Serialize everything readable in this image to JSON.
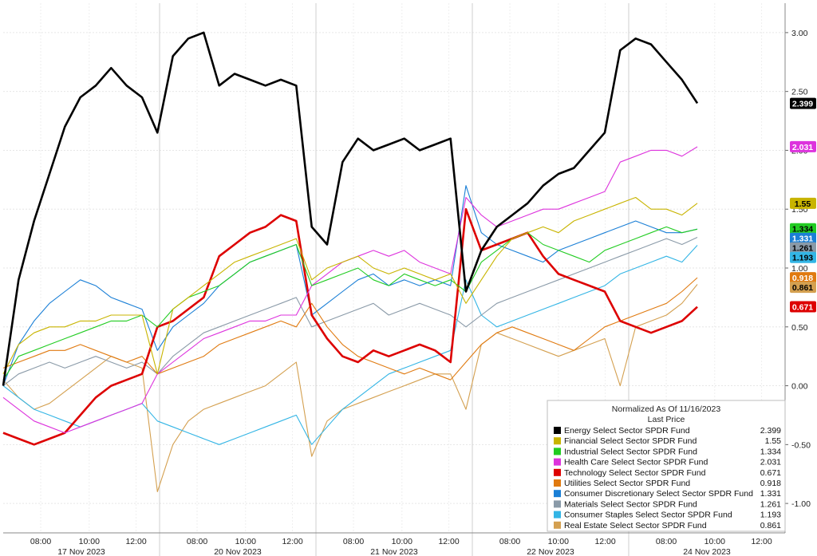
{
  "chart_data": {
    "type": "line",
    "title": "Normalized As Of 11/16/2023",
    "subtitle": "Last Price",
    "ylim": [
      -1.25,
      3.25
    ],
    "y_ticks": [
      -1.0,
      -0.5,
      0.0,
      0.5,
      1.0,
      1.5,
      2.0,
      2.5,
      3.0
    ],
    "y_tick_labels": [
      "-1.00",
      "-0.50",
      "0.00",
      "0.50",
      "1.00",
      "1.50",
      "2.00",
      "2.50",
      "3.00"
    ],
    "x_ticks": [
      "08:00",
      "10:00",
      "12:00",
      "08:00",
      "10:00",
      "12:00",
      "08:00",
      "10:00",
      "12:00",
      "08:00",
      "10:00",
      "12:00",
      "08:00",
      "10:00",
      "12:00"
    ],
    "days": [
      "17 Nov 2023",
      "20 Nov 2023",
      "21 Nov 2023",
      "22 Nov 2023",
      "24 Nov 2023"
    ],
    "grid": true,
    "legend_position": "bottom-right",
    "series": [
      {
        "name": "Energy Select Sector SPDR Fund",
        "last": "2.399",
        "color": "#000000",
        "values": [
          0.0,
          0.9,
          1.4,
          1.8,
          2.2,
          2.45,
          2.55,
          2.7,
          2.55,
          2.45,
          2.15,
          2.8,
          2.95,
          3.0,
          2.55,
          2.65,
          2.6,
          2.55,
          2.6,
          2.55,
          1.35,
          1.2,
          1.9,
          2.1,
          2.0,
          2.05,
          2.1,
          2.0,
          2.05,
          2.1,
          0.8,
          1.15,
          1.35,
          1.45,
          1.55,
          1.7,
          1.8,
          1.85,
          2.0,
          2.15,
          2.85,
          2.95,
          2.9,
          2.75,
          2.6,
          2.4
        ]
      },
      {
        "name": "Financial Select Sector SPDR Fund",
        "last": "1.55",
        "color": "#c8b400",
        "values": [
          0.1,
          0.35,
          0.45,
          0.5,
          0.5,
          0.55,
          0.55,
          0.6,
          0.6,
          0.6,
          0.1,
          0.65,
          0.75,
          0.85,
          0.95,
          1.05,
          1.1,
          1.15,
          1.2,
          1.25,
          0.9,
          1.0,
          1.05,
          1.1,
          1.0,
          0.95,
          1.0,
          0.95,
          0.9,
          0.95,
          0.7,
          0.9,
          1.1,
          1.25,
          1.3,
          1.35,
          1.3,
          1.4,
          1.45,
          1.5,
          1.55,
          1.6,
          1.5,
          1.5,
          1.45,
          1.55
        ]
      },
      {
        "name": "Industrial Select Sector SPDR Fund",
        "last": "1.334",
        "color": "#22cc22",
        "values": [
          0.05,
          0.25,
          0.3,
          0.35,
          0.4,
          0.45,
          0.5,
          0.55,
          0.55,
          0.6,
          0.5,
          0.65,
          0.75,
          0.8,
          0.85,
          0.95,
          1.05,
          1.1,
          1.15,
          1.2,
          0.85,
          0.9,
          0.95,
          1.0,
          0.9,
          0.85,
          0.95,
          0.9,
          0.85,
          0.9,
          0.8,
          1.05,
          1.15,
          1.25,
          1.3,
          1.2,
          1.15,
          1.1,
          1.05,
          1.15,
          1.2,
          1.25,
          1.3,
          1.35,
          1.3,
          1.33
        ]
      },
      {
        "name": "Health Care Select Sector SPDR Fund",
        "last": "2.031",
        "color": "#dd33dd",
        "values": [
          -0.1,
          -0.2,
          -0.3,
          -0.35,
          -0.4,
          -0.35,
          -0.3,
          -0.25,
          -0.2,
          -0.15,
          0.1,
          0.2,
          0.3,
          0.4,
          0.45,
          0.5,
          0.55,
          0.55,
          0.6,
          0.6,
          0.85,
          0.95,
          1.05,
          1.1,
          1.15,
          1.1,
          1.15,
          1.05,
          1.0,
          0.95,
          1.6,
          1.45,
          1.35,
          1.4,
          1.45,
          1.5,
          1.5,
          1.55,
          1.6,
          1.65,
          1.9,
          1.95,
          2.0,
          2.0,
          1.95,
          2.03
        ]
      },
      {
        "name": "Technology Select Sector SPDR Fund",
        "last": "0.671",
        "color": "#dd0000",
        "values": [
          -0.4,
          -0.45,
          -0.5,
          -0.45,
          -0.4,
          -0.25,
          -0.1,
          0.0,
          0.05,
          0.1,
          0.5,
          0.55,
          0.65,
          0.75,
          1.1,
          1.2,
          1.3,
          1.35,
          1.45,
          1.4,
          0.6,
          0.4,
          0.25,
          0.2,
          0.3,
          0.25,
          0.3,
          0.35,
          0.3,
          0.2,
          1.5,
          1.15,
          1.2,
          1.25,
          1.3,
          1.1,
          0.95,
          0.9,
          0.85,
          0.8,
          0.55,
          0.5,
          0.45,
          0.5,
          0.55,
          0.67
        ]
      },
      {
        "name": "Utilities Select Sector SPDR Fund",
        "last": "0.918",
        "color": "#e07a10",
        "values": [
          0.15,
          0.2,
          0.25,
          0.3,
          0.3,
          0.35,
          0.3,
          0.25,
          0.2,
          0.25,
          0.1,
          0.15,
          0.2,
          0.25,
          0.35,
          0.4,
          0.45,
          0.5,
          0.55,
          0.5,
          0.7,
          0.5,
          0.35,
          0.25,
          0.2,
          0.15,
          0.1,
          0.15,
          0.1,
          0.05,
          0.2,
          0.35,
          0.45,
          0.5,
          0.45,
          0.4,
          0.35,
          0.3,
          0.4,
          0.5,
          0.55,
          0.6,
          0.65,
          0.7,
          0.8,
          0.918
        ]
      },
      {
        "name": "Consumer Discretionary Select Sector SPDR Fund",
        "last": "1.331",
        "color": "#1a7fd6",
        "values": [
          0.0,
          0.35,
          0.55,
          0.7,
          0.8,
          0.9,
          0.85,
          0.75,
          0.7,
          0.65,
          0.3,
          0.5,
          0.6,
          0.7,
          0.85,
          0.95,
          1.05,
          1.1,
          1.15,
          1.2,
          0.6,
          0.7,
          0.8,
          0.9,
          0.95,
          0.85,
          0.9,
          0.85,
          0.9,
          0.85,
          1.7,
          1.3,
          1.2,
          1.15,
          1.1,
          1.05,
          1.15,
          1.2,
          1.25,
          1.3,
          1.35,
          1.4,
          1.35,
          1.3,
          1.3,
          1.331
        ]
      },
      {
        "name": "Materials Select Sector SPDR Fund",
        "last": "1.261",
        "color": "#8a9aa8",
        "values": [
          0.0,
          0.1,
          0.15,
          0.2,
          0.15,
          0.2,
          0.25,
          0.2,
          0.15,
          0.2,
          0.1,
          0.25,
          0.35,
          0.45,
          0.5,
          0.55,
          0.6,
          0.65,
          0.7,
          0.75,
          0.5,
          0.55,
          0.6,
          0.65,
          0.7,
          0.6,
          0.65,
          0.7,
          0.65,
          0.6,
          0.5,
          0.6,
          0.7,
          0.75,
          0.8,
          0.85,
          0.9,
          0.95,
          1.0,
          1.05,
          1.1,
          1.15,
          1.2,
          1.25,
          1.2,
          1.261
        ]
      },
      {
        "name": "Consumer Staples Select Sector SPDR Fund",
        "last": "1.193",
        "color": "#33b5e5",
        "values": [
          0.0,
          -0.1,
          -0.2,
          -0.25,
          -0.3,
          -0.35,
          -0.3,
          -0.25,
          -0.2,
          -0.15,
          -0.3,
          -0.35,
          -0.4,
          -0.45,
          -0.5,
          -0.45,
          -0.4,
          -0.35,
          -0.3,
          -0.25,
          -0.5,
          -0.35,
          -0.2,
          -0.1,
          0.0,
          0.1,
          0.15,
          0.2,
          0.25,
          0.3,
          0.9,
          0.6,
          0.5,
          0.55,
          0.6,
          0.65,
          0.7,
          0.75,
          0.8,
          0.85,
          0.95,
          1.0,
          1.05,
          1.1,
          1.05,
          1.193
        ]
      },
      {
        "name": "Real Estate Select Sector SPDR Fund",
        "last": "0.861",
        "color": "#d4a050",
        "values": [
          0.05,
          -0.1,
          -0.2,
          -0.15,
          -0.05,
          0.05,
          0.15,
          0.25,
          0.2,
          0.15,
          -0.9,
          -0.5,
          -0.3,
          -0.2,
          -0.15,
          -0.1,
          -0.05,
          0.0,
          0.1,
          0.2,
          -0.6,
          -0.3,
          -0.2,
          -0.15,
          -0.1,
          -0.05,
          0.0,
          0.05,
          0.1,
          0.1,
          -0.2,
          0.35,
          0.45,
          0.4,
          0.35,
          0.3,
          0.25,
          0.3,
          0.35,
          0.4,
          0.0,
          0.5,
          0.55,
          0.6,
          0.7,
          0.861
        ]
      }
    ]
  }
}
